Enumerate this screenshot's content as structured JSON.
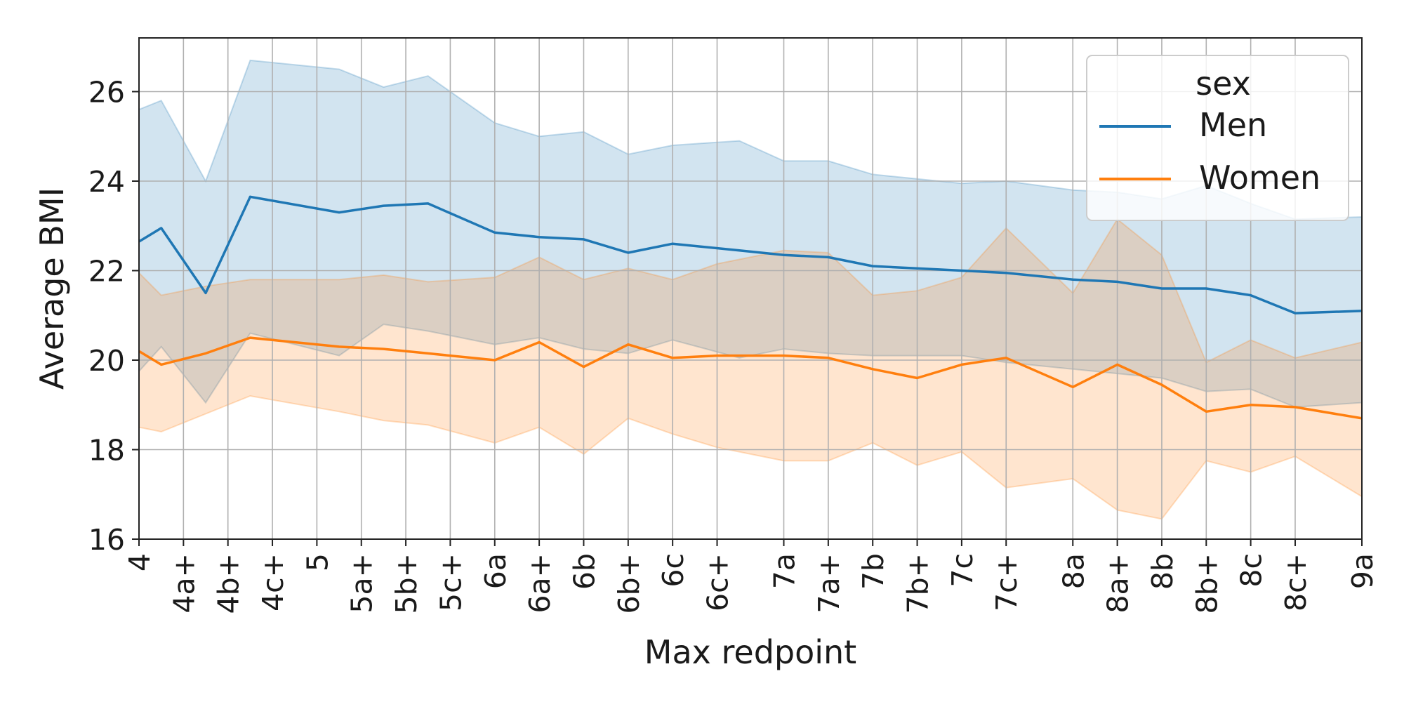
{
  "chart_data": {
    "type": "line",
    "xlabel": "Max redpoint",
    "ylabel": "Average BMI",
    "ylim": [
      16,
      27.2
    ],
    "yticks": [
      16,
      18,
      20,
      22,
      24,
      26
    ],
    "xlim": [
      0,
      27.5
    ],
    "xticks": [
      {
        "x": 0,
        "label": "4"
      },
      {
        "x": 1,
        "label": "4a+"
      },
      {
        "x": 2,
        "label": "4b+"
      },
      {
        "x": 3,
        "label": "4c+"
      },
      {
        "x": 4,
        "label": "5"
      },
      {
        "x": 5,
        "label": "5a+"
      },
      {
        "x": 6,
        "label": "5b+"
      },
      {
        "x": 7,
        "label": "5c+"
      },
      {
        "x": 8,
        "label": "6a"
      },
      {
        "x": 9,
        "label": "6a+"
      },
      {
        "x": 10,
        "label": "6b"
      },
      {
        "x": 11,
        "label": "6b+"
      },
      {
        "x": 12,
        "label": "6c"
      },
      {
        "x": 13,
        "label": "6c+"
      },
      {
        "x": 14.5,
        "label": "7a"
      },
      {
        "x": 15.5,
        "label": "7a+"
      },
      {
        "x": 16.5,
        "label": "7b"
      },
      {
        "x": 17.5,
        "label": "7b+"
      },
      {
        "x": 18.5,
        "label": "7c"
      },
      {
        "x": 19.5,
        "label": "7c+"
      },
      {
        "x": 21,
        "label": "8a"
      },
      {
        "x": 22,
        "label": "8a+"
      },
      {
        "x": 23,
        "label": "8b"
      },
      {
        "x": 24,
        "label": "8b+"
      },
      {
        "x": 25,
        "label": "8c"
      },
      {
        "x": 26,
        "label": "8c+"
      },
      {
        "x": 27.5,
        "label": "9a"
      }
    ],
    "grid": true,
    "legend": {
      "title": "sex",
      "placement": "top-right"
    },
    "series": [
      {
        "name": "Men",
        "color": "#1f77b4",
        "points": [
          {
            "x": 0,
            "y": 22.65,
            "lo": 19.75,
            "hi": 25.6
          },
          {
            "x": 0.5,
            "y": 22.95,
            "lo": 20.3,
            "hi": 25.8
          },
          {
            "x": 1.5,
            "y": 21.5,
            "lo": 19.05,
            "hi": 24.0
          },
          {
            "x": 2.5,
            "y": 23.65,
            "lo": 20.6,
            "hi": 26.7
          },
          {
            "x": 4.5,
            "y": 23.3,
            "lo": 20.1,
            "hi": 26.5
          },
          {
            "x": 5.5,
            "y": 23.45,
            "lo": 20.8,
            "hi": 26.1
          },
          {
            "x": 6.5,
            "y": 23.5,
            "lo": 20.65,
            "hi": 26.35
          },
          {
            "x": 8,
            "y": 22.85,
            "lo": 20.35,
            "hi": 25.3
          },
          {
            "x": 9,
            "y": 22.75,
            "lo": 20.5,
            "hi": 25.0
          },
          {
            "x": 10,
            "y": 22.7,
            "lo": 20.25,
            "hi": 25.1
          },
          {
            "x": 11,
            "y": 22.4,
            "lo": 20.15,
            "hi": 24.6
          },
          {
            "x": 12,
            "y": 22.6,
            "lo": 20.45,
            "hi": 24.8
          },
          {
            "x": 13.5,
            "y": 22.45,
            "lo": 20.05,
            "hi": 24.9
          },
          {
            "x": 14.5,
            "y": 22.35,
            "lo": 20.25,
            "hi": 24.45
          },
          {
            "x": 15.5,
            "y": 22.3,
            "lo": 20.15,
            "hi": 24.45
          },
          {
            "x": 16.5,
            "y": 22.1,
            "lo": 20.1,
            "hi": 24.15
          },
          {
            "x": 18.5,
            "y": 22.0,
            "lo": 20.1,
            "hi": 23.95
          },
          {
            "x": 19.5,
            "y": 21.95,
            "lo": 19.95,
            "hi": 24.0
          },
          {
            "x": 21,
            "y": 21.8,
            "lo": 19.8,
            "hi": 23.8
          },
          {
            "x": 22,
            "y": 21.75,
            "lo": 19.7,
            "hi": 23.75
          },
          {
            "x": 23,
            "y": 21.6,
            "lo": 19.6,
            "hi": 23.6
          },
          {
            "x": 24,
            "y": 21.6,
            "lo": 19.3,
            "hi": 23.9
          },
          {
            "x": 25,
            "y": 21.45,
            "lo": 19.35,
            "hi": 23.5
          },
          {
            "x": 26,
            "y": 21.05,
            "lo": 18.95,
            "hi": 23.15
          },
          {
            "x": 27.5,
            "y": 21.1,
            "lo": 19.05,
            "hi": 23.2
          }
        ]
      },
      {
        "name": "Women",
        "color": "#ff7f0e",
        "points": [
          {
            "x": 0,
            "y": 20.2,
            "lo": 18.5,
            "hi": 21.95
          },
          {
            "x": 0.5,
            "y": 19.9,
            "lo": 18.4,
            "hi": 21.45
          },
          {
            "x": 1.5,
            "y": 20.15,
            "lo": 18.8,
            "hi": 21.65
          },
          {
            "x": 2.5,
            "y": 20.5,
            "lo": 19.2,
            "hi": 21.8
          },
          {
            "x": 4.5,
            "y": 20.3,
            "lo": 18.85,
            "hi": 21.8
          },
          {
            "x": 5.5,
            "y": 20.25,
            "lo": 18.65,
            "hi": 21.9
          },
          {
            "x": 6.5,
            "y": 20.15,
            "lo": 18.55,
            "hi": 21.75
          },
          {
            "x": 8,
            "y": 20.0,
            "lo": 18.15,
            "hi": 21.85
          },
          {
            "x": 9,
            "y": 20.4,
            "lo": 18.5,
            "hi": 22.3
          },
          {
            "x": 10,
            "y": 19.85,
            "lo": 17.9,
            "hi": 21.8
          },
          {
            "x": 11,
            "y": 20.35,
            "lo": 18.7,
            "hi": 22.05
          },
          {
            "x": 12,
            "y": 20.05,
            "lo": 18.35,
            "hi": 21.8
          },
          {
            "x": 13,
            "y": 20.1,
            "lo": 18.05,
            "hi": 22.15
          },
          {
            "x": 14.5,
            "y": 20.1,
            "lo": 17.75,
            "hi": 22.45
          },
          {
            "x": 15.5,
            "y": 20.05,
            "lo": 17.75,
            "hi": 22.4
          },
          {
            "x": 16.5,
            "y": 19.8,
            "lo": 18.15,
            "hi": 21.45
          },
          {
            "x": 17.5,
            "y": 19.6,
            "lo": 17.65,
            "hi": 21.55
          },
          {
            "x": 18.5,
            "y": 19.9,
            "lo": 17.95,
            "hi": 21.85
          },
          {
            "x": 19.5,
            "y": 20.05,
            "lo": 17.15,
            "hi": 22.95
          },
          {
            "x": 21,
            "y": 19.4,
            "lo": 17.35,
            "hi": 21.5
          },
          {
            "x": 22,
            "y": 19.9,
            "lo": 16.65,
            "hi": 23.15
          },
          {
            "x": 23,
            "y": 19.45,
            "lo": 16.45,
            "hi": 22.35
          },
          {
            "x": 24,
            "y": 18.85,
            "lo": 17.75,
            "hi": 19.95
          },
          {
            "x": 25,
            "y": 19.0,
            "lo": 17.5,
            "hi": 20.45
          },
          {
            "x": 26,
            "y": 18.95,
            "lo": 17.85,
            "hi": 20.05
          },
          {
            "x": 27.5,
            "y": 18.7,
            "lo": 16.95,
            "hi": 20.4
          }
        ]
      }
    ]
  }
}
